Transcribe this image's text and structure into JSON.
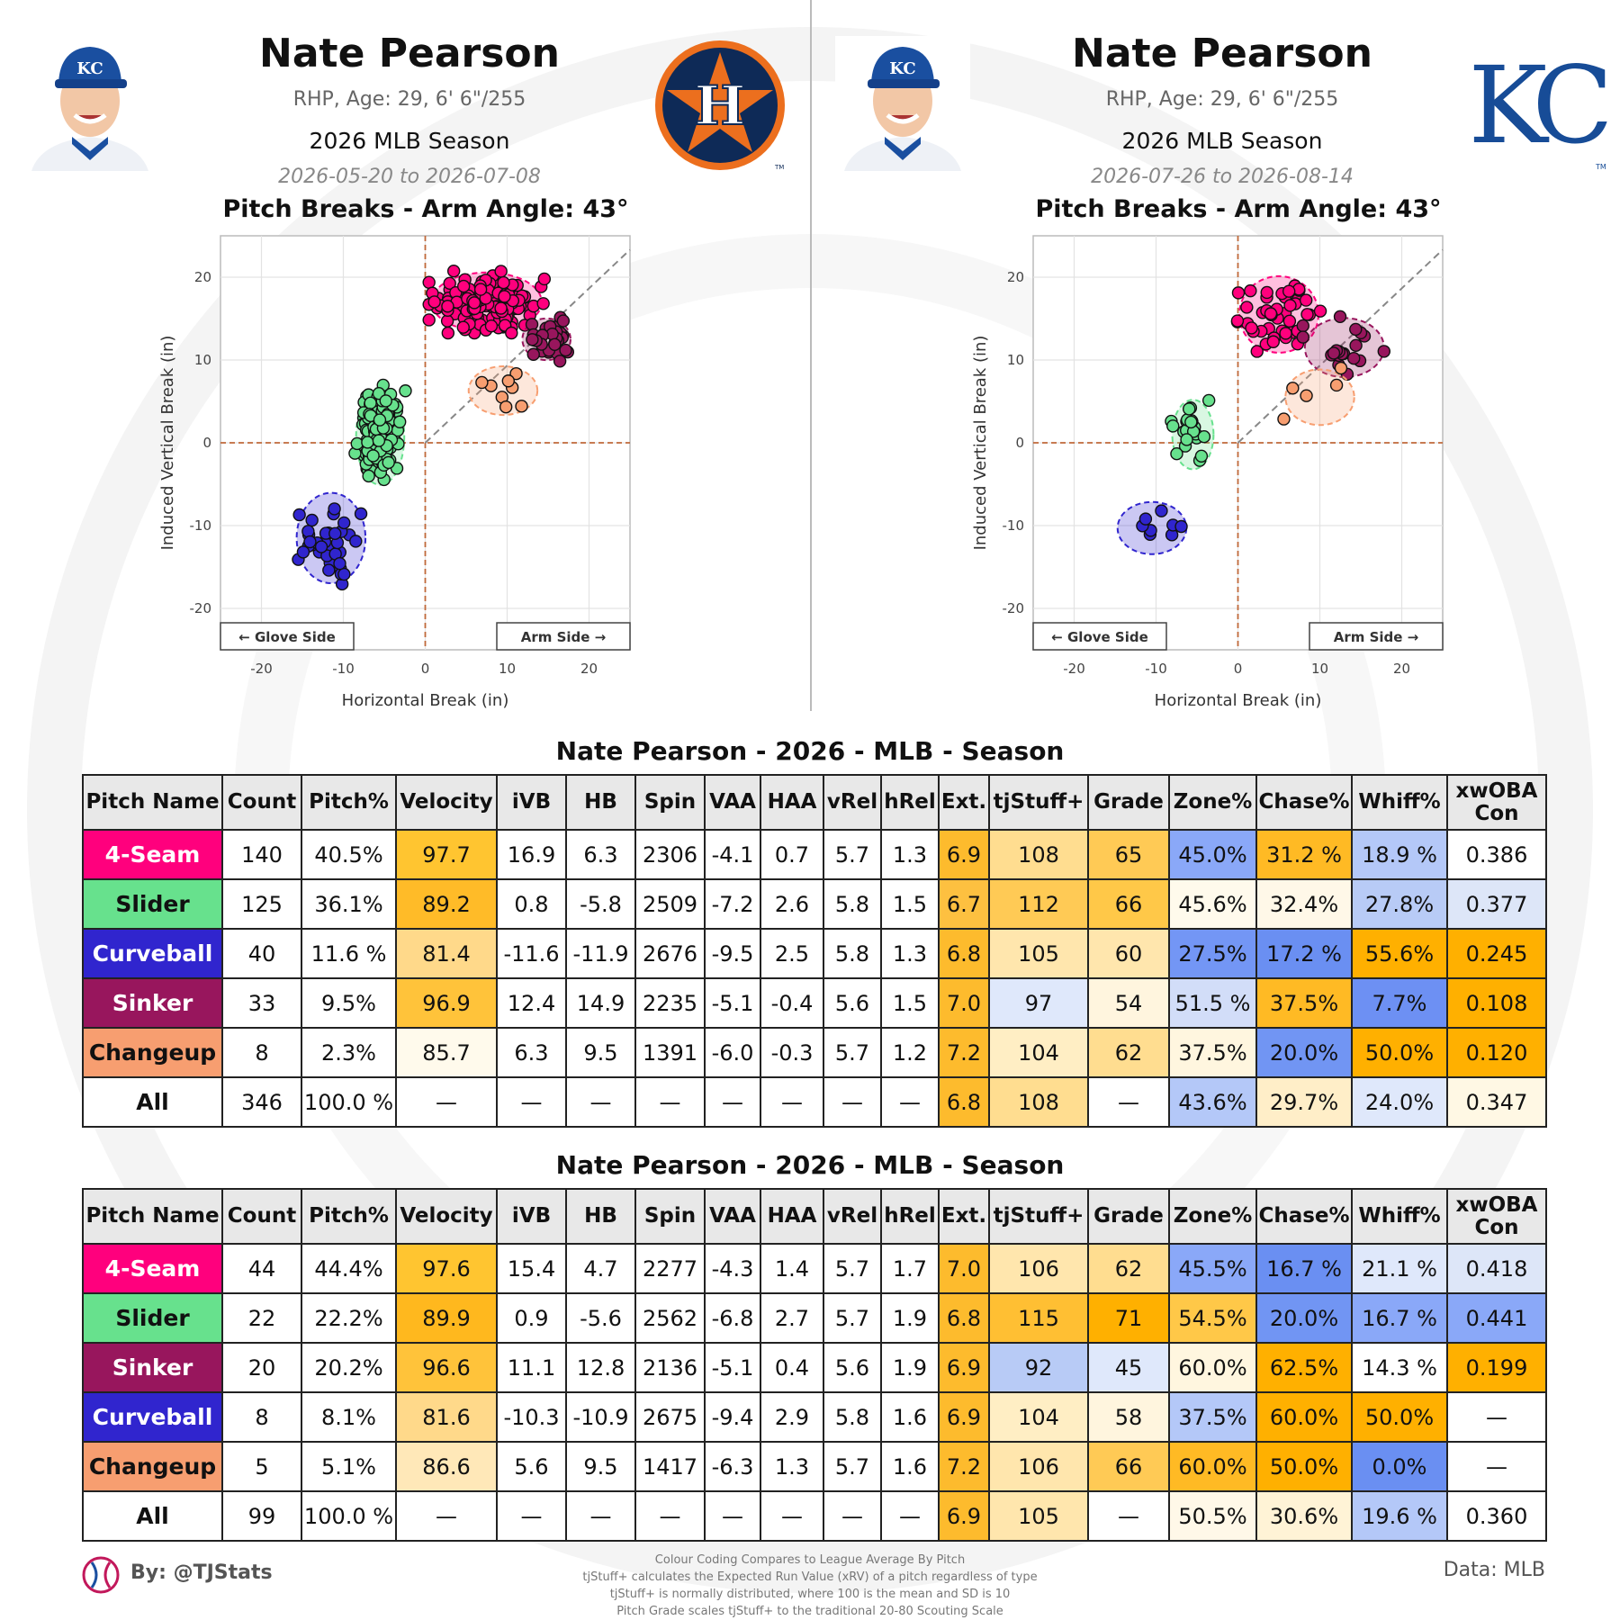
{
  "panels": [
    {
      "team": "HOU",
      "name": "Nate Pearson",
      "bio": "RHP, Age: 29, 6' 6\"/255",
      "season": "2026 MLB Season",
      "dates": "2026-05-20 to 2026-07-08",
      "logo_icon": "astros-logo",
      "chart_title": "Pitch Breaks - Arm Angle: 43°"
    },
    {
      "team": "KC",
      "name": "Nate Pearson",
      "bio": "RHP, Age: 29, 6' 6\"/255",
      "season": "2026 MLB Season",
      "dates": "2026-07-26 to 2026-08-14",
      "logo_icon": "royals-logo",
      "chart_title": "Pitch Breaks - Arm Angle: 43°"
    }
  ],
  "logo_text": {
    "astros": "H",
    "royals": "KC",
    "headshot_cap": "KC",
    "trademark": "TM"
  },
  "pitch_colors": {
    "4-Seam": "#ff007d",
    "Slider": "#67e18d",
    "Curveball": "#3025ce",
    "Sinker": "#98165d",
    "Changeup": "#f79e70"
  },
  "chart_data": [
    {
      "type": "scatter",
      "title": "Pitch Breaks - Arm Angle: 43°",
      "xlabel": "Horizontal Break (in)",
      "ylabel": "Induced Vertical Break (in)",
      "xlim": [
        -25,
        25
      ],
      "ylim": [
        -25,
        25
      ],
      "xticks": [
        -20,
        -10,
        0,
        10,
        20
      ],
      "yticks": [
        -20,
        -10,
        0,
        10,
        20
      ],
      "grid": true,
      "glove_label": "← Glove Side",
      "arm_label": "Arm Side →",
      "series": [
        {
          "name": "4-Seam",
          "color": "#ff007d",
          "center": [
            7.5,
            17.0
          ],
          "spread": [
            3.2,
            1.7
          ],
          "n": 140
        },
        {
          "name": "Slider",
          "color": "#67e18d",
          "center": [
            -5.5,
            0.8
          ],
          "spread": [
            1.4,
            2.8
          ],
          "n": 125
        },
        {
          "name": "Curveball",
          "color": "#3025ce",
          "center": [
            -11.5,
            -11.5
          ],
          "spread": [
            2.0,
            2.6
          ],
          "n": 40
        },
        {
          "name": "Sinker",
          "color": "#98165d",
          "center": [
            14.8,
            12.5
          ],
          "spread": [
            1.4,
            1.2
          ],
          "n": 33
        },
        {
          "name": "Changeup",
          "color": "#f79e70",
          "center": [
            9.5,
            6.3
          ],
          "spread": [
            2.0,
            1.4
          ],
          "n": 8
        }
      ]
    },
    {
      "type": "scatter",
      "title": "Pitch Breaks - Arm Angle: 43°",
      "xlabel": "Horizontal Break (in)",
      "ylabel": "Induced Vertical Break (in)",
      "xlim": [
        -25,
        25
      ],
      "ylim": [
        -25,
        25
      ],
      "xticks": [
        -20,
        -10,
        0,
        10,
        20
      ],
      "yticks": [
        -20,
        -10,
        0,
        10,
        20
      ],
      "grid": true,
      "glove_label": "← Glove Side",
      "arm_label": "Arm Side →",
      "series": [
        {
          "name": "4-Seam",
          "color": "#ff007d",
          "center": [
            5.0,
            15.5
          ],
          "spread": [
            2.3,
            2.2
          ],
          "n": 44
        },
        {
          "name": "Slider",
          "color": "#67e18d",
          "center": [
            -5.5,
            1.0
          ],
          "spread": [
            1.2,
            2.0
          ],
          "n": 22
        },
        {
          "name": "Curveball",
          "color": "#3025ce",
          "center": [
            -10.5,
            -10.3
          ],
          "spread": [
            2.0,
            1.5
          ],
          "n": 8
        },
        {
          "name": "Sinker",
          "color": "#98165d",
          "center": [
            13.0,
            11.5
          ],
          "spread": [
            2.3,
            1.7
          ],
          "n": 20
        },
        {
          "name": "Changeup",
          "color": "#f79e70",
          "center": [
            10.0,
            5.5
          ],
          "spread": [
            2.0,
            1.6
          ],
          "n": 5
        }
      ]
    }
  ],
  "tables": [
    {
      "title": "Nate Pearson - 2026 - MLB - Season",
      "headers": [
        "Pitch Name",
        "Count",
        "Pitch%",
        "Velocity",
        "iVB",
        "HB",
        "Spin",
        "VAA",
        "HAA",
        "vRel",
        "hRel",
        "Ext.",
        "tjStuff+",
        "Grade",
        "Zone%",
        "Chase%",
        "Whiff%",
        "xwOBA Con"
      ],
      "rows": [
        {
          "cells": [
            "4-Seam",
            "140",
            "40.5%",
            "97.7",
            "16.9",
            "6.3",
            "2306",
            "-4.1",
            "0.7",
            "5.7",
            "1.3",
            "6.9",
            "108",
            "65",
            "45.0%",
            "31.2 %",
            "18.9 %",
            "0.386"
          ],
          "bg": [
            "#ff007d",
            "#fff",
            "#fff",
            "#ffc530",
            "#fff",
            "#fff",
            "#fff",
            "#fff",
            "#fff",
            "#fff",
            "#fff",
            "#fdbb2d",
            "#ffdd90",
            "#ffca55",
            "#8aa8f8",
            "#ffba24",
            "#b4c8f8",
            "#fff"
          ]
        },
        {
          "cells": [
            "Slider",
            "125",
            "36.1%",
            "89.2",
            "0.8",
            "-5.8",
            "2509",
            "-7.2",
            "2.6",
            "5.8",
            "1.5",
            "6.7",
            "112",
            "66",
            "45.6%",
            "32.4%",
            "27.8%",
            "0.377"
          ],
          "bg": [
            "#67e18d",
            "#fff",
            "#fff",
            "#ffbb28",
            "#fff",
            "#fff",
            "#fff",
            "#fff",
            "#fff",
            "#fff",
            "#fff",
            "#fdc040",
            "#ffca55",
            "#ffc848",
            "#fffaec",
            "#fff8e8",
            "#b8cbf6",
            "#dde6f8"
          ]
        },
        {
          "cells": [
            "Curveball",
            "40",
            "11.6 %",
            "81.4",
            "-11.6",
            "-11.9",
            "2676",
            "-9.5",
            "2.5",
            "5.8",
            "1.3",
            "6.8",
            "105",
            "60",
            "27.5%",
            "17.2 %",
            "55.6%",
            "0.245"
          ],
          "bg": [
            "#3025ce",
            "#fff",
            "#fff",
            "#ffd98a",
            "#fff",
            "#fff",
            "#fff",
            "#fff",
            "#fff",
            "#fff",
            "#fff",
            "#fdbb2d",
            "#ffe6ad",
            "#ffe6ad",
            "#7396f5",
            "#6a8ff2",
            "#ffb000",
            "#ffb000"
          ]
        },
        {
          "cells": [
            "Sinker",
            "33",
            "9.5%",
            "96.9",
            "12.4",
            "14.9",
            "2235",
            "-5.1",
            "-0.4",
            "5.6",
            "1.5",
            "7.0",
            "97",
            "54",
            "51.5 %",
            "37.5%",
            "7.7%",
            "0.108"
          ],
          "bg": [
            "#98165d",
            "#fff",
            "#fff",
            "#ffc33a",
            "#fff",
            "#fff",
            "#fff",
            "#fff",
            "#fff",
            "#fff",
            "#fff",
            "#fdbb2d",
            "#dfe8fb",
            "#fff5de",
            "#d2ddf8",
            "#ffba24",
            "#6d90f3",
            "#ffb000"
          ]
        },
        {
          "cells": [
            "Changeup",
            "8",
            "2.3%",
            "85.7",
            "6.3",
            "9.5",
            "1391",
            "-6.0",
            "-0.3",
            "5.7",
            "1.2",
            "7.2",
            "104",
            "62",
            "37.5%",
            "20.0%",
            "50.0%",
            "0.120"
          ],
          "bg": [
            "#f79e70",
            "#fff",
            "#fff",
            "#fffaec",
            "#fff",
            "#fff",
            "#fff",
            "#fff",
            "#fff",
            "#fff",
            "#fff",
            "#fdbb2d",
            "#ffeec4",
            "#ffdd90",
            "#fff6df",
            "#7195f3",
            "#ffb000",
            "#ffb000"
          ]
        },
        {
          "cells": [
            "All",
            "346",
            "100.0 %",
            "—",
            "—",
            "—",
            "—",
            "—",
            "—",
            "—",
            "—",
            "6.8",
            "108",
            "—",
            "43.6%",
            "29.7%",
            "24.0%",
            "0.347"
          ],
          "bg": [
            "#fff",
            "#fff",
            "#fff",
            "#fff",
            "#fff",
            "#fff",
            "#fff",
            "#fff",
            "#fff",
            "#fff",
            "#fff",
            "#fdbb2d",
            "#ffdd90",
            "#fff",
            "#b4c8f8",
            "#ffeec8",
            "#dfe8fb",
            "#fff8e4"
          ]
        }
      ]
    },
    {
      "title": "Nate Pearson - 2026 - MLB - Season",
      "headers": [
        "Pitch Name",
        "Count",
        "Pitch%",
        "Velocity",
        "iVB",
        "HB",
        "Spin",
        "VAA",
        "HAA",
        "vRel",
        "hRel",
        "Ext.",
        "tjStuff+",
        "Grade",
        "Zone%",
        "Chase%",
        "Whiff%",
        "xwOBA Con"
      ],
      "rows": [
        {
          "cells": [
            "4-Seam",
            "44",
            "44.4%",
            "97.6",
            "15.4",
            "4.7",
            "2277",
            "-4.3",
            "1.4",
            "5.7",
            "1.7",
            "7.0",
            "106",
            "62",
            "45.5%",
            "16.7 %",
            "21.1 %",
            "0.418"
          ],
          "bg": [
            "#ff007d",
            "#fff",
            "#fff",
            "#ffc530",
            "#fff",
            "#fff",
            "#fff",
            "#fff",
            "#fff",
            "#fff",
            "#fff",
            "#fdbb2d",
            "#ffe6ad",
            "#ffdd90",
            "#8aa8f8",
            "#6a8ff2",
            "#dfe8fb",
            "#dde6f8"
          ]
        },
        {
          "cells": [
            "Slider",
            "22",
            "22.2%",
            "89.9",
            "0.9",
            "-5.6",
            "2562",
            "-6.8",
            "2.7",
            "5.7",
            "1.9",
            "6.8",
            "115",
            "71",
            "54.5%",
            "20.0%",
            "16.7 %",
            "0.441"
          ],
          "bg": [
            "#67e18d",
            "#fff",
            "#fff",
            "#ffb81e",
            "#fff",
            "#fff",
            "#fff",
            "#fff",
            "#fff",
            "#fff",
            "#fff",
            "#fdbb2d",
            "#ffbf33",
            "#ffb000",
            "#ffc848",
            "#7195f3",
            "#8aa8f8",
            "#8aa8f8"
          ]
        },
        {
          "cells": [
            "Sinker",
            "20",
            "20.2%",
            "96.6",
            "11.1",
            "12.8",
            "2136",
            "-5.1",
            "0.4",
            "5.6",
            "1.9",
            "6.9",
            "92",
            "45",
            "60.0%",
            "62.5%",
            "14.3 %",
            "0.199"
          ],
          "bg": [
            "#98165d",
            "#fff",
            "#fff",
            "#ffc33a",
            "#fff",
            "#fff",
            "#fff",
            "#fff",
            "#fff",
            "#fff",
            "#fff",
            "#fdbb2d",
            "#b8cbf6",
            "#dfe8fb",
            "#fff6df",
            "#ffb000",
            "#fff",
            "#ffb000"
          ]
        },
        {
          "cells": [
            "Curveball",
            "8",
            "8.1%",
            "81.6",
            "-10.3",
            "-10.9",
            "2675",
            "-9.4",
            "2.9",
            "5.8",
            "1.6",
            "6.9",
            "104",
            "58",
            "37.5%",
            "60.0%",
            "50.0%",
            "—"
          ],
          "bg": [
            "#3025ce",
            "#fff",
            "#fff",
            "#ffd98a",
            "#fff",
            "#fff",
            "#fff",
            "#fff",
            "#fff",
            "#fff",
            "#fff",
            "#fdbb2d",
            "#ffeec4",
            "#fff5de",
            "#b4c8f8",
            "#ffb000",
            "#ffb000",
            "#fff"
          ]
        },
        {
          "cells": [
            "Changeup",
            "5",
            "5.1%",
            "86.6",
            "5.6",
            "9.5",
            "1417",
            "-6.3",
            "1.3",
            "5.7",
            "1.6",
            "7.2",
            "106",
            "66",
            "60.0%",
            "50.0%",
            "0.0%",
            "—"
          ],
          "bg": [
            "#f79e70",
            "#fff",
            "#fff",
            "#ffe8b8",
            "#fff",
            "#fff",
            "#fff",
            "#fff",
            "#fff",
            "#fff",
            "#fff",
            "#fdbb2d",
            "#ffe6ad",
            "#ffca55",
            "#ffba24",
            "#ffb000",
            "#6a8ff2",
            "#fff"
          ]
        },
        {
          "cells": [
            "All",
            "99",
            "100.0 %",
            "—",
            "—",
            "—",
            "—",
            "—",
            "—",
            "—",
            "—",
            "6.9",
            "105",
            "—",
            "50.5%",
            "30.6%",
            "19.6 %",
            "0.360"
          ],
          "bg": [
            "#fff",
            "#fff",
            "#fff",
            "#fff",
            "#fff",
            "#fff",
            "#fff",
            "#fff",
            "#fff",
            "#fff",
            "#fff",
            "#fdbb2d",
            "#ffe6ad",
            "#fff",
            "#fff8e8",
            "#fff3d6",
            "#b4c8f8",
            "#fff"
          ]
        }
      ]
    }
  ],
  "footer": {
    "by": "By: @TJStats",
    "data": "Data: MLB",
    "notes": [
      "Colour Coding Compares to League Average By Pitch",
      "tjStuff+ calculates the Expected Run Value (xRV) of a pitch regardless of type",
      "tjStuff+ is normally distributed, where 100 is the mean and SD is 10",
      "Pitch Grade scales tjStuff+ to the traditional 20-80 Scouting Scale"
    ]
  }
}
